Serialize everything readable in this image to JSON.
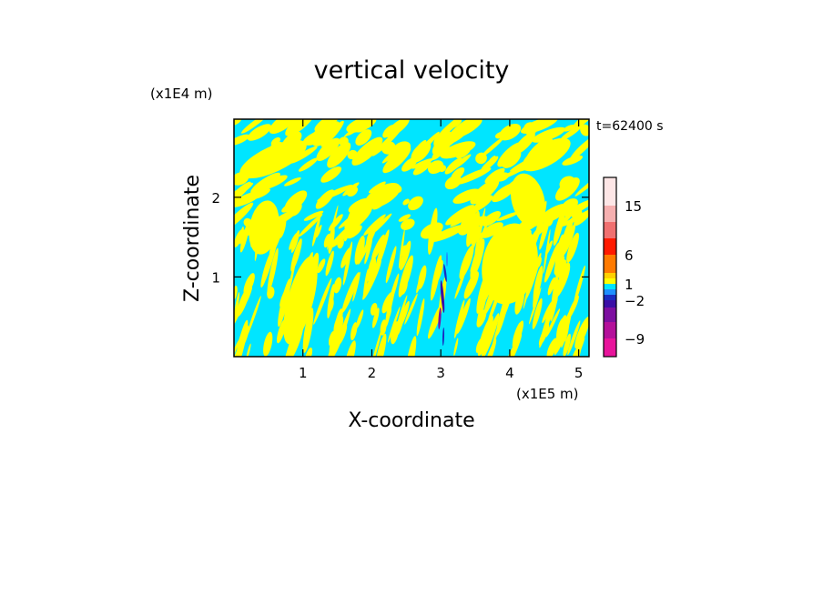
{
  "chart_data": {
    "type": "heatmap",
    "title": "vertical velocity",
    "xlabel": "X-coordinate",
    "ylabel": "Z-coordinate",
    "x_unit": "(x1E5 m)",
    "y_unit": "(x1E4 m)",
    "time_label": "t=62400 s",
    "xlim": [
      0,
      5.15
    ],
    "ylim": [
      0,
      2.98
    ],
    "x_ticks": [
      1,
      2,
      3,
      4,
      5
    ],
    "y_ticks": [
      1,
      2
    ],
    "x_tick_labels": [
      "1",
      "2",
      "3",
      "4",
      "5"
    ],
    "y_tick_labels": [
      "1",
      "2"
    ],
    "dominant_values": [
      "positive (yellow, 0 to 1)",
      "negative (cyan, -1 to 0)"
    ],
    "colorbar": {
      "levels": [
        -12,
        -9,
        -6,
        -4,
        -2,
        -1,
        0,
        1,
        2,
        4,
        6,
        9,
        12,
        15,
        18
      ],
      "colors": [
        "#e8149b",
        "#b4109a",
        "#7d0fa0",
        "#3b0fa6",
        "#1a2cc0",
        "#1e90ff",
        "#00e5ff",
        "#ffff00",
        "#ffd000",
        "#ff7a00",
        "#ff1a00",
        "#f07070",
        "#f6b0b0",
        "#fde6e6"
      ],
      "tick_labels": [
        {
          "value": 15,
          "label": "15"
        },
        {
          "value": 6,
          "label": "6"
        },
        {
          "value": 1,
          "label": "1"
        },
        {
          "value": -2,
          "label": "−2"
        },
        {
          "value": -9,
          "label": "−9"
        }
      ]
    }
  }
}
